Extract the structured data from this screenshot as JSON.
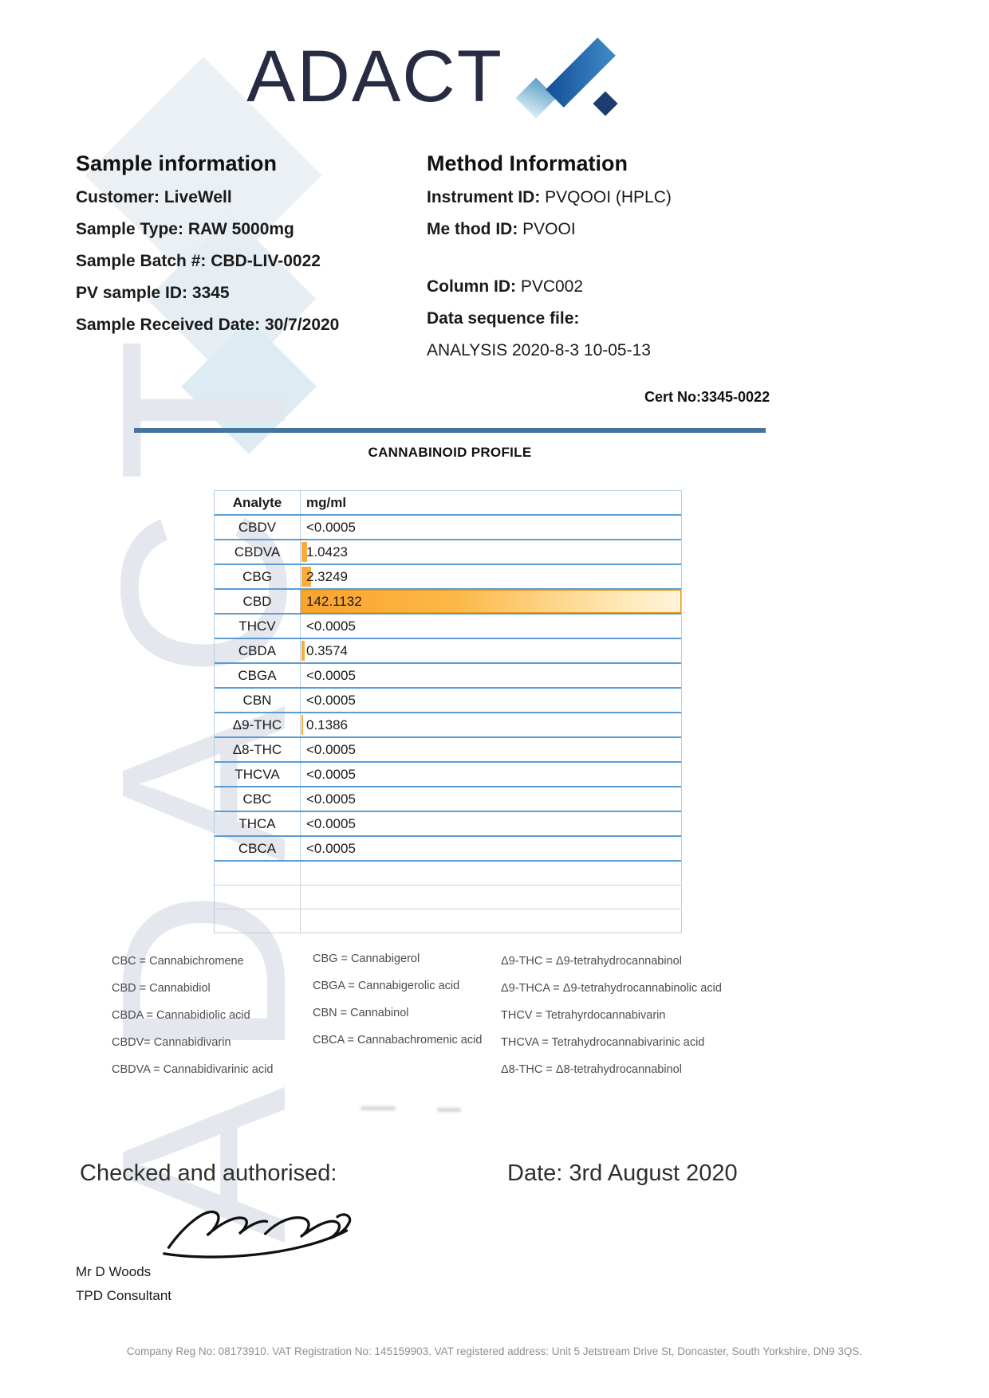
{
  "logo": {
    "wordmark": "ADACT"
  },
  "sample_info": {
    "title": "Sample information",
    "lines": [
      {
        "label": "Customer:",
        "value": "LiveWell"
      },
      {
        "label": "Sample Type:",
        "value": "RAW 5000mg"
      },
      {
        "label": "Sample Batch #:",
        "value": "CBD-LIV-0022"
      },
      {
        "label": "PV sample ID:",
        "value": "3345"
      },
      {
        "label": "Sample Received Date:",
        "value": "30/7/2020"
      }
    ]
  },
  "method_info": {
    "title": "Method Information",
    "lines": [
      {
        "label": "Instrument ID:",
        "value": "PVQOOI (HPLC)",
        "gap": false
      },
      {
        "label": "Me thod ID:",
        "value": "PVOOI",
        "gap": false
      },
      {
        "label": "Column ID:",
        "value": "PVC002",
        "gap": true
      },
      {
        "label": "Data sequence file:",
        "value": "",
        "gap": false
      },
      {
        "label": "",
        "value": "ANALYSIS 2020-8-3  10-05-13",
        "gap": false
      }
    ]
  },
  "cert_no": "Cert No:3345-0022",
  "profile": {
    "title": "CANNABINOID PROFILE",
    "columns": [
      "Analyte",
      "mg/ml"
    ],
    "unit_max_value": 142.1132,
    "rows": [
      {
        "analyte": "CBDV",
        "value": "<0.0005",
        "bar_pct": 0
      },
      {
        "analyte": "CBDVA",
        "value": "1.0423",
        "bar_pct": 1.4
      },
      {
        "analyte": "CBG",
        "value": "2.3249",
        "bar_pct": 2.6
      },
      {
        "analyte": "CBD",
        "value": "142.1132",
        "bar_pct": 100
      },
      {
        "analyte": "THCV",
        "value": "<0.0005",
        "bar_pct": 0
      },
      {
        "analyte": "CBDA",
        "value": "0.3574",
        "bar_pct": 0.9
      },
      {
        "analyte": "CBGA",
        "value": "<0.0005",
        "bar_pct": 0
      },
      {
        "analyte": "CBN",
        "value": "<0.0005",
        "bar_pct": 0
      },
      {
        "analyte": "Δ9-THC",
        "value": "0.1386",
        "bar_pct": 0.4
      },
      {
        "analyte": "Δ8-THC",
        "value": "<0.0005",
        "bar_pct": 0
      },
      {
        "analyte": "THCVA",
        "value": "<0.0005",
        "bar_pct": 0
      },
      {
        "analyte": "CBC",
        "value": "<0.0005",
        "bar_pct": 0
      },
      {
        "analyte": "THCA",
        "value": "<0.0005",
        "bar_pct": 0
      },
      {
        "analyte": "CBCA",
        "value": "<0.0005",
        "bar_pct": 0
      }
    ],
    "empty_rows": 3
  },
  "legend": {
    "col1": [
      "CBC = Cannabichromene",
      "CBD = Cannabidiol",
      "CBDA = Cannabidiolic acid",
      "CBDV= Cannabidivarin",
      "CBDVA = Cannabidivarinic acid"
    ],
    "col2": [
      "CBG = Cannabigerol",
      "CBGA = Cannabigerolic acid",
      "CBN = Cannabinol",
      "CBCA = Cannabachromenic acid"
    ],
    "col3": [
      "Δ9-THC = Δ9-tetrahydrocannabinol",
      "Δ9-THCA  = Δ9-tetrahydrocannabinolic acid",
      "THCV = Tetrahyrdocannabivarin",
      "THCVA = Tetrahydrocannabivarinic acid",
      "Δ8-THC = Δ8-tetrahydrocannabinol"
    ]
  },
  "authorisation": {
    "checked_label": "Checked and authorised:",
    "date_label": "Date: 3rd August 2020",
    "signatory_name": "Mr D Woods",
    "signatory_title": "TPD Consultant"
  },
  "footer": {
    "text": "Company Reg No: 08173910. VAT Registration No: 145159903. VAT registered address: Unit 5 Jetstream Drive St, Doncaster, South Yorkshire, DN9 3QS."
  },
  "colors": {
    "accent_rule_blue": "#45749f",
    "table_line_blue": "#5b9bd5",
    "data_bar_orange": "#fbab38",
    "logo_navy": "#272c42"
  }
}
